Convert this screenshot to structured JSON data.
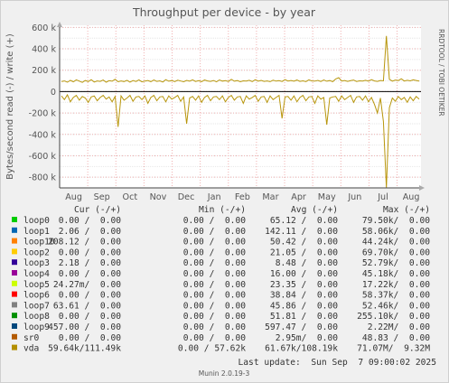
{
  "chart_data": {
    "type": "line",
    "title": "Throughput per device - by year",
    "ylabel": "Bytes/second read (-) / write (+)",
    "side_label": "RRDTOOL / TOBI OETIKER",
    "footer": "Munin 2.0.19-3",
    "ylim": [
      -900000,
      620000
    ],
    "y_ticks": [
      {
        "v": 600000,
        "label": "600 k"
      },
      {
        "v": 400000,
        "label": "400 k"
      },
      {
        "v": 200000,
        "label": "200 k"
      },
      {
        "v": 0,
        "label": "0"
      },
      {
        "v": -200000,
        "label": "-200 k"
      },
      {
        "v": -400000,
        "label": "-400 k"
      },
      {
        "v": -600000,
        "label": "-600 k"
      },
      {
        "v": -800000,
        "label": "-800 k"
      }
    ],
    "x_ticks": [
      "Aug",
      "Sep",
      "Oct",
      "Nov",
      "Dec",
      "Jan",
      "Feb",
      "Mar",
      "Apr",
      "May",
      "Jun",
      "Jul",
      "Aug"
    ],
    "grid": true,
    "series": [
      {
        "name": "vda",
        "color": "#b8960c",
        "write": [
          [
            0,
            95000
          ],
          [
            1,
            100000
          ],
          [
            2,
            88000
          ],
          [
            3,
            105000
          ],
          [
            4,
            92000
          ],
          [
            5,
            110000
          ],
          [
            6,
            98000
          ],
          [
            7,
            86000
          ],
          [
            8,
            104000
          ],
          [
            9,
            94000
          ],
          [
            10,
            112000
          ],
          [
            11,
            90000
          ],
          [
            12,
            100000
          ],
          [
            13,
            96000
          ],
          [
            14,
            108000
          ],
          [
            15,
            88000
          ],
          [
            16,
            102000
          ],
          [
            17,
            97000
          ],
          [
            18,
            115000
          ],
          [
            19,
            92000
          ],
          [
            20,
            100000
          ],
          [
            21,
            94000
          ],
          [
            22,
            106000
          ],
          [
            23,
            89000
          ],
          [
            24,
            103000
          ],
          [
            25,
            95000
          ],
          [
            26,
            110000
          ],
          [
            27,
            91000
          ],
          [
            28,
            99000
          ],
          [
            29,
            104000
          ],
          [
            30,
            93000
          ],
          [
            31,
            108000
          ],
          [
            32,
            96000
          ],
          [
            33,
            101000
          ],
          [
            34,
            90000
          ],
          [
            35,
            112000
          ],
          [
            36,
            97000
          ],
          [
            37,
            103000
          ],
          [
            38,
            94000
          ],
          [
            39,
            107000
          ],
          [
            40,
            99000
          ],
          [
            41,
            92000
          ],
          [
            42,
            105000
          ],
          [
            43,
            98000
          ],
          [
            44,
            110000
          ],
          [
            45,
            95000
          ],
          [
            46,
            102000
          ],
          [
            47,
            93000
          ],
          [
            48,
            108000
          ],
          [
            49,
            100000
          ],
          [
            50,
            96000
          ],
          [
            51,
            104000
          ],
          [
            52,
            91000
          ],
          [
            53,
            109000
          ],
          [
            54,
            98000
          ],
          [
            55,
            102000
          ],
          [
            56,
            95000
          ],
          [
            57,
            115000
          ],
          [
            58,
            97000
          ],
          [
            59,
            103000
          ],
          [
            60,
            92000
          ],
          [
            61,
            101000
          ],
          [
            62,
            99000
          ],
          [
            63,
            106000
          ],
          [
            64,
            94000
          ],
          [
            65,
            111000
          ],
          [
            66,
            98000
          ],
          [
            67,
            105000
          ],
          [
            68,
            96000
          ],
          [
            69,
            100000
          ],
          [
            70,
            93000
          ],
          [
            71,
            107000
          ],
          [
            72,
            98000
          ],
          [
            73,
            102000
          ],
          [
            74,
            95000
          ],
          [
            75,
            112000
          ],
          [
            76,
            99000
          ],
          [
            77,
            104000
          ],
          [
            78,
            97000
          ],
          [
            79,
            108000
          ],
          [
            80,
            96000
          ],
          [
            81,
            101000
          ],
          [
            82,
            94000
          ],
          [
            83,
            110000
          ],
          [
            84,
            100000
          ],
          [
            85,
            98000
          ],
          [
            86,
            105000
          ],
          [
            87,
            95000
          ],
          [
            88,
            109000
          ],
          [
            89,
            97000
          ],
          [
            90,
            103000
          ],
          [
            91,
            93000
          ],
          [
            92,
            118000
          ],
          [
            93,
            130000
          ],
          [
            94,
            99000
          ],
          [
            95,
            104000
          ],
          [
            96,
            96000
          ],
          [
            97,
            102000
          ],
          [
            98,
            108000
          ],
          [
            99,
            95000
          ],
          [
            100,
            101000
          ],
          [
            101,
            99000
          ],
          [
            102,
            106000
          ],
          [
            103,
            97000
          ],
          [
            104,
            112000
          ],
          [
            105,
            100000
          ],
          [
            106,
            96000
          ],
          [
            107,
            104000
          ],
          [
            108,
            101000
          ],
          [
            109,
            520000
          ],
          [
            110,
            115000
          ],
          [
            111,
            98000
          ],
          [
            112,
            108000
          ],
          [
            113,
            103000
          ],
          [
            114,
            120000
          ],
          [
            115,
            99000
          ],
          [
            116,
            106000
          ],
          [
            117,
            101000
          ],
          [
            118,
            110000
          ],
          [
            119,
            104000
          ],
          [
            120,
            98000
          ]
        ],
        "read": [
          [
            0,
            -40000
          ],
          [
            1,
            -75000
          ],
          [
            2,
            -30000
          ],
          [
            3,
            -95000
          ],
          [
            4,
            -55000
          ],
          [
            5,
            -35000
          ],
          [
            6,
            -80000
          ],
          [
            7,
            -45000
          ],
          [
            8,
            -60000
          ],
          [
            9,
            -100000
          ],
          [
            10,
            -50000
          ],
          [
            11,
            -40000
          ],
          [
            12,
            -85000
          ],
          [
            13,
            -55000
          ],
          [
            14,
            -35000
          ],
          [
            15,
            -70000
          ],
          [
            16,
            -50000
          ],
          [
            17,
            -95000
          ],
          [
            18,
            -45000
          ],
          [
            19,
            -330000
          ],
          [
            20,
            -40000
          ],
          [
            21,
            -80000
          ],
          [
            22,
            -60000
          ],
          [
            23,
            -35000
          ],
          [
            24,
            -90000
          ],
          [
            25,
            -50000
          ],
          [
            26,
            -45000
          ],
          [
            27,
            -75000
          ],
          [
            28,
            -40000
          ],
          [
            29,
            -110000
          ],
          [
            30,
            -55000
          ],
          [
            31,
            -35000
          ],
          [
            32,
            -85000
          ],
          [
            33,
            -50000
          ],
          [
            34,
            -45000
          ],
          [
            35,
            -95000
          ],
          [
            36,
            -40000
          ],
          [
            37,
            -70000
          ],
          [
            38,
            -55000
          ],
          [
            39,
            -35000
          ],
          [
            40,
            -90000
          ],
          [
            41,
            -50000
          ],
          [
            42,
            -300000
          ],
          [
            43,
            -60000
          ],
          [
            44,
            -45000
          ],
          [
            45,
            -80000
          ],
          [
            46,
            -40000
          ],
          [
            47,
            -100000
          ],
          [
            48,
            -55000
          ],
          [
            49,
            -35000
          ],
          [
            50,
            -85000
          ],
          [
            51,
            -50000
          ],
          [
            52,
            -45000
          ],
          [
            53,
            -75000
          ],
          [
            54,
            -40000
          ],
          [
            55,
            -95000
          ],
          [
            56,
            -55000
          ],
          [
            57,
            -35000
          ],
          [
            58,
            -80000
          ],
          [
            59,
            -50000
          ],
          [
            60,
            -45000
          ],
          [
            61,
            -110000
          ],
          [
            62,
            -40000
          ],
          [
            63,
            -70000
          ],
          [
            64,
            -55000
          ],
          [
            65,
            -35000
          ],
          [
            66,
            -90000
          ],
          [
            67,
            -50000
          ],
          [
            68,
            -45000
          ],
          [
            69,
            -100000
          ],
          [
            70,
            -40000
          ],
          [
            71,
            -75000
          ],
          [
            72,
            -55000
          ],
          [
            73,
            -35000
          ],
          [
            74,
            -250000
          ],
          [
            75,
            -50000
          ],
          [
            76,
            -45000
          ],
          [
            77,
            -80000
          ],
          [
            78,
            -40000
          ],
          [
            79,
            -95000
          ],
          [
            80,
            -55000
          ],
          [
            81,
            -35000
          ],
          [
            82,
            -85000
          ],
          [
            83,
            -50000
          ],
          [
            84,
            -45000
          ],
          [
            85,
            -110000
          ],
          [
            86,
            -40000
          ],
          [
            87,
            -70000
          ],
          [
            88,
            -55000
          ],
          [
            89,
            -310000
          ],
          [
            90,
            -60000
          ],
          [
            91,
            -50000
          ],
          [
            92,
            -45000
          ],
          [
            93,
            -90000
          ],
          [
            94,
            -40000
          ],
          [
            95,
            -75000
          ],
          [
            96,
            -55000
          ],
          [
            97,
            -35000
          ],
          [
            98,
            -100000
          ],
          [
            99,
            -50000
          ],
          [
            100,
            -45000
          ],
          [
            101,
            -80000
          ],
          [
            102,
            -40000
          ],
          [
            103,
            -95000
          ],
          [
            104,
            -55000
          ],
          [
            105,
            -120000
          ],
          [
            106,
            -200000
          ],
          [
            107,
            -60000
          ],
          [
            108,
            -280000
          ],
          [
            109,
            -900000
          ],
          [
            110,
            -150000
          ],
          [
            111,
            -60000
          ],
          [
            112,
            -90000
          ],
          [
            113,
            -45000
          ],
          [
            114,
            -75000
          ],
          [
            115,
            -55000
          ],
          [
            116,
            -100000
          ],
          [
            117,
            -50000
          ],
          [
            118,
            -85000
          ],
          [
            119,
            -45000
          ],
          [
            120,
            -70000
          ]
        ]
      }
    ]
  },
  "legend": {
    "headers": {
      "cur": "Cur (-/+)",
      "min": "Min (-/+)",
      "avg": "Avg (-/+)",
      "max": "Max (-/+)"
    },
    "rows": [
      {
        "name": "loop0",
        "color": "#00cc00",
        "cur": "0.00 /  0.00",
        "min": "0.00 /  0.00",
        "avg": "65.12 /  0.00",
        "max": "79.50k/  0.00"
      },
      {
        "name": "loop1",
        "color": "#0066b3",
        "cur": "2.06 /  0.00",
        "min": "0.00 /  0.00",
        "avg": "142.11 /  0.00",
        "max": "58.06k/  0.00"
      },
      {
        "name": "loop10",
        "color": "#ff8000",
        "cur": "208.12 /  0.00",
        "min": "0.00 /  0.00",
        "avg": "50.42 /  0.00",
        "max": "44.24k/  0.00"
      },
      {
        "name": "loop2",
        "color": "#ffcc00",
        "cur": "0.00 /  0.00",
        "min": "0.00 /  0.00",
        "avg": "21.05 /  0.00",
        "max": "69.70k/  0.00"
      },
      {
        "name": "loop3",
        "color": "#330099",
        "cur": "2.18 /  0.00",
        "min": "0.00 /  0.00",
        "avg": "8.48 /  0.00",
        "max": "52.79k/  0.00"
      },
      {
        "name": "loop4",
        "color": "#990099",
        "cur": "0.00 /  0.00",
        "min": "0.00 /  0.00",
        "avg": "16.00 /  0.00",
        "max": "45.18k/  0.00"
      },
      {
        "name": "loop5",
        "color": "#ccff00",
        "cur": "24.27m/  0.00",
        "min": "0.00 /  0.00",
        "avg": "23.35 /  0.00",
        "max": "17.22k/  0.00"
      },
      {
        "name": "loop6",
        "color": "#ff0000",
        "cur": "0.00 /  0.00",
        "min": "0.00 /  0.00",
        "avg": "38.84 /  0.00",
        "max": "58.37k/  0.00"
      },
      {
        "name": "loop7",
        "color": "#808080",
        "cur": "63.61 /  0.00",
        "min": "0.00 /  0.00",
        "avg": "45.86 /  0.00",
        "max": "52.46k/  0.00"
      },
      {
        "name": "loop8",
        "color": "#008f00",
        "cur": "0.00 /  0.00",
        "min": "0.00 /  0.00",
        "avg": "51.81 /  0.00",
        "max": "255.10k/  0.00"
      },
      {
        "name": "loop9",
        "color": "#00487d",
        "cur": "457.00 /  0.00",
        "min": "0.00 /  0.00",
        "avg": "597.47 /  0.00",
        "max": "2.22M/  0.00"
      },
      {
        "name": "sr0",
        "color": "#b35a00",
        "cur": "0.00 /  0.00",
        "min": "0.00 /  0.00",
        "avg": "2.95m/  0.00",
        "max": "48.83 /  0.00"
      },
      {
        "name": "vda",
        "color": "#b38f00",
        "cur": "59.64k/111.49k",
        "min": "0.00 / 57.62k",
        "avg": "61.67k/108.19k",
        "max": "71.07M/  9.32M"
      }
    ],
    "last_update": "Last update:  Sun Sep  7 09:00:02 2025"
  }
}
